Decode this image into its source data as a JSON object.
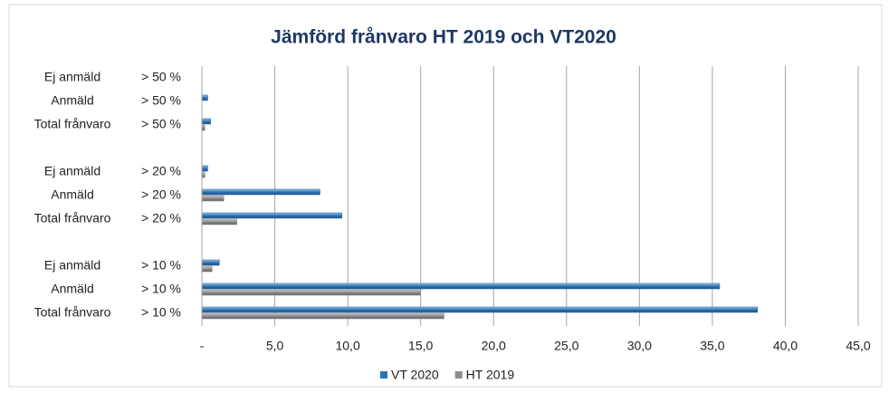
{
  "chart_data": {
    "type": "bar",
    "orientation": "horizontal",
    "title": "Jämförd frånvaro HT 2019 och VT2020",
    "categories": [
      "Ej anmäld",
      "Anmäld",
      "Total frånvaro",
      null,
      "Ej anmäld",
      "Anmäld",
      "Total frånvaro",
      null,
      "Ej anmäld",
      "Anmäld",
      "Total frånvaro"
    ],
    "category_thresholds": [
      "> 50 %",
      "> 50 %",
      "> 50 %",
      null,
      "> 20 %",
      "> 20 %",
      "> 20 %",
      null,
      "> 10 %",
      "> 10 %",
      "> 10 %"
    ],
    "series": [
      {
        "name": "VT 2020",
        "color": "#2e75b6",
        "values": [
          0,
          0.4,
          0.6,
          null,
          0.4,
          8.1,
          9.6,
          null,
          1.2,
          35.5,
          38.1
        ]
      },
      {
        "name": "HT 2019",
        "color": "#8c8c8c",
        "values": [
          0,
          0,
          0.2,
          null,
          0.2,
          1.5,
          2.4,
          null,
          0.7,
          15.0,
          16.6
        ]
      }
    ],
    "xlim": [
      0,
      45
    ],
    "xticks": [
      {
        "value": 0,
        "label": "-"
      },
      {
        "value": 5,
        "label": "5,0"
      },
      {
        "value": 10,
        "label": "10,0"
      },
      {
        "value": 15,
        "label": "15,0"
      },
      {
        "value": 20,
        "label": "20,0"
      },
      {
        "value": 25,
        "label": "25,0"
      },
      {
        "value": 30,
        "label": "30,0"
      },
      {
        "value": 35,
        "label": "35,0"
      },
      {
        "value": 40,
        "label": "40,0"
      },
      {
        "value": 45,
        "label": "45,0"
      }
    ],
    "grid": true,
    "legend": "bottom"
  }
}
